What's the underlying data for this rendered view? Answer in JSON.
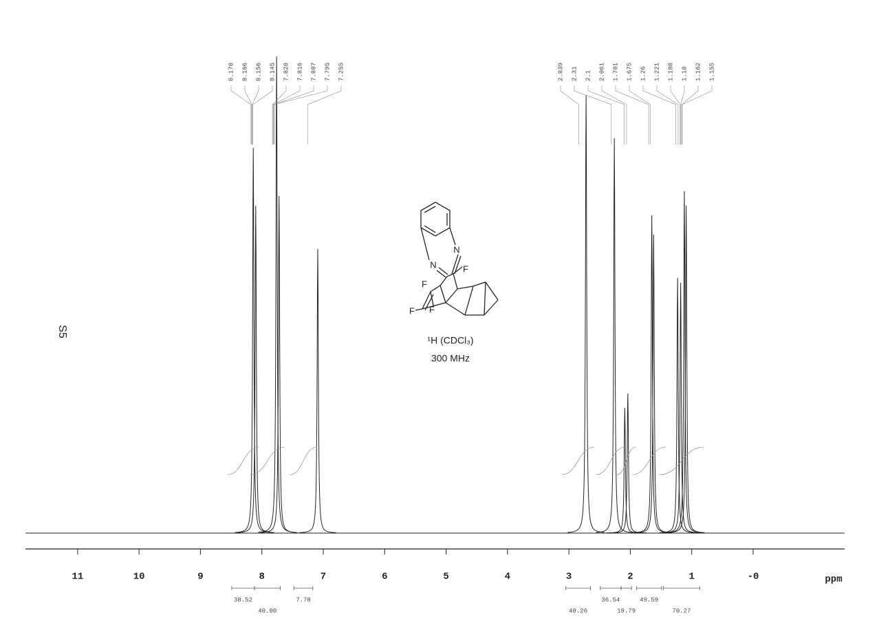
{
  "sample_label": "S5",
  "molecule": {
    "atoms": [
      "N",
      "N",
      "F",
      "F",
      "F",
      "F"
    ],
    "nucleus": "¹H (CDCl₃)",
    "frequency": "300 MHz"
  },
  "chart_data": {
    "type": "spectrum",
    "x_label": "ppm",
    "xlim": [
      11.85,
      -1.49
    ],
    "xticks": [
      11,
      10,
      9,
      8,
      7,
      6,
      5,
      4,
      3,
      2,
      1,
      {
        "value": 0,
        "label": "-0"
      }
    ],
    "ylim": [
      0,
      100
    ],
    "color": "#222222",
    "peaks": [
      {
        "position": 8.14,
        "height": 80
      },
      {
        "position": 8.1,
        "height": 68
      },
      {
        "position": 7.76,
        "height": 99
      },
      {
        "position": 7.72,
        "height": 70
      },
      {
        "position": 7.09,
        "height": 59
      },
      {
        "position": 2.72,
        "height": 91
      },
      {
        "position": 2.26,
        "height": 82
      },
      {
        "position": 2.09,
        "height": 26
      },
      {
        "position": 2.04,
        "height": 29
      },
      {
        "position": 1.65,
        "height": 66
      },
      {
        "position": 1.62,
        "height": 62
      },
      {
        "position": 1.23,
        "height": 53
      },
      {
        "position": 1.18,
        "height": 52
      },
      {
        "position": 1.12,
        "height": 71
      },
      {
        "position": 1.09,
        "height": 68
      }
    ],
    "shift_labels": [
      8.178,
      8.166,
      8.156,
      8.145,
      7.828,
      7.816,
      7.807,
      7.795,
      7.255,
      2.839,
      2.31,
      2.1,
      2.061,
      1.701,
      1.675,
      1.26,
      1.221,
      1.188,
      1.18,
      1.162,
      1.155
    ],
    "integrals": [
      {
        "range": [
          8.49,
          8.12
        ],
        "value": 38.52
      },
      {
        "range": [
          8.12,
          7.7
        ],
        "value": 40.0,
        "value_label": "40.00"
      },
      {
        "range": [
          7.48,
          7.17
        ],
        "value": 7.78
      },
      {
        "range": [
          3.05,
          2.65
        ],
        "value": 40.26
      },
      {
        "range": [
          2.49,
          2.15
        ],
        "value": 36.54
      },
      {
        "range": [
          2.15,
          1.98
        ],
        "value": 19.79
      },
      {
        "range": [
          1.9,
          1.49
        ],
        "value": 49.59
      },
      {
        "range": [
          1.46,
          0.87
        ],
        "value": 70.27
      }
    ]
  }
}
